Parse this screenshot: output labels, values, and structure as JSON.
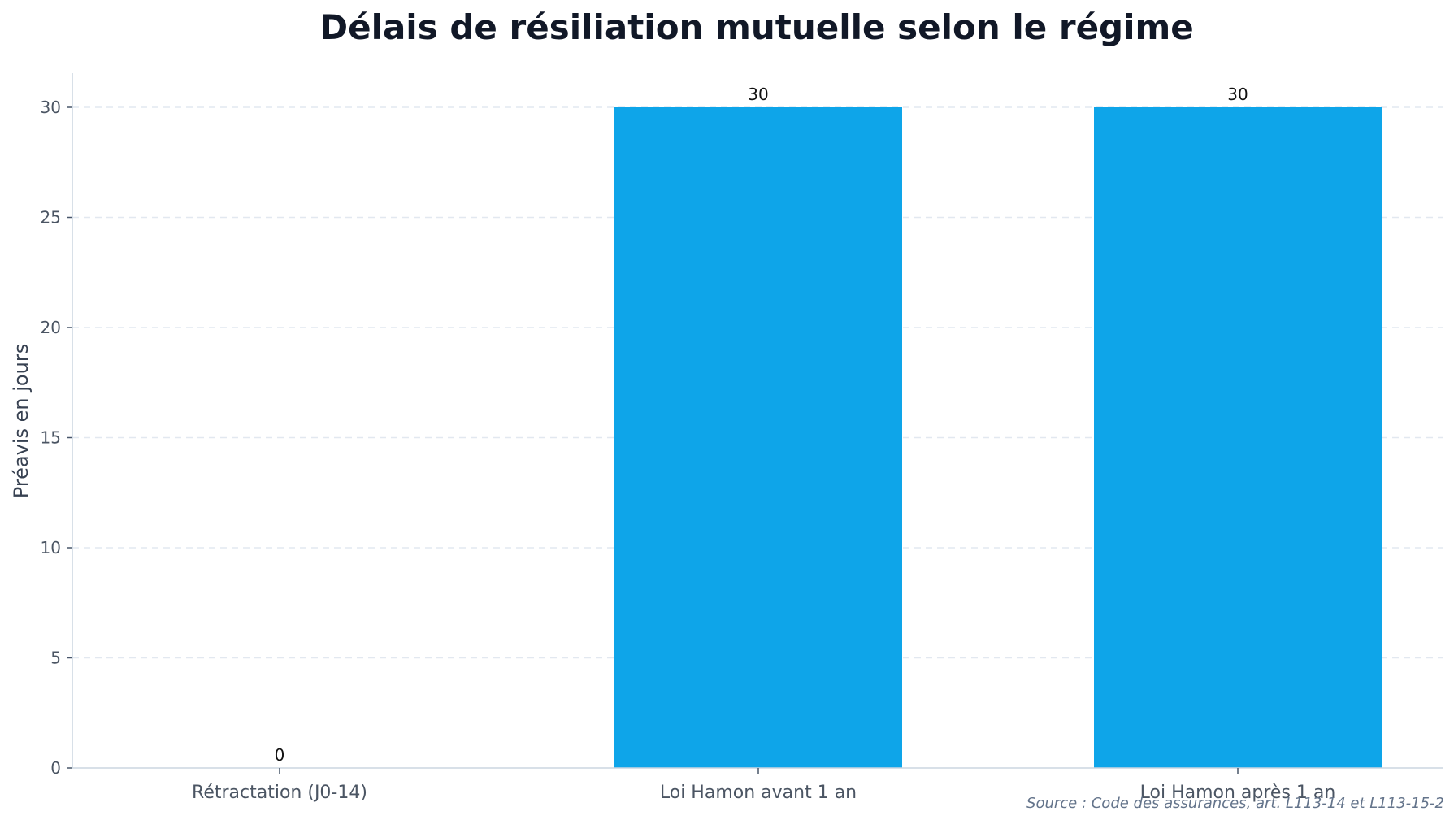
{
  "chart_data": {
    "type": "bar",
    "title": "Délais de résiliation mutuelle selon le régime",
    "xlabel": "",
    "ylabel": "Préavis en jours",
    "categories": [
      "Rétractation (J0-14)",
      "Loi Hamon avant 1 an",
      "Loi Hamon après 1 an"
    ],
    "values": [
      0,
      30,
      30
    ],
    "data_labels": [
      "0",
      "30",
      "30"
    ],
    "ylim": [
      0,
      31.5
    ],
    "yticks": [
      0,
      5,
      10,
      15,
      20,
      25,
      30
    ],
    "grid": true,
    "bar_color": "#0ea5e9",
    "source": "Source : Code des assurances, art. L113-14 et L113-15-2"
  }
}
